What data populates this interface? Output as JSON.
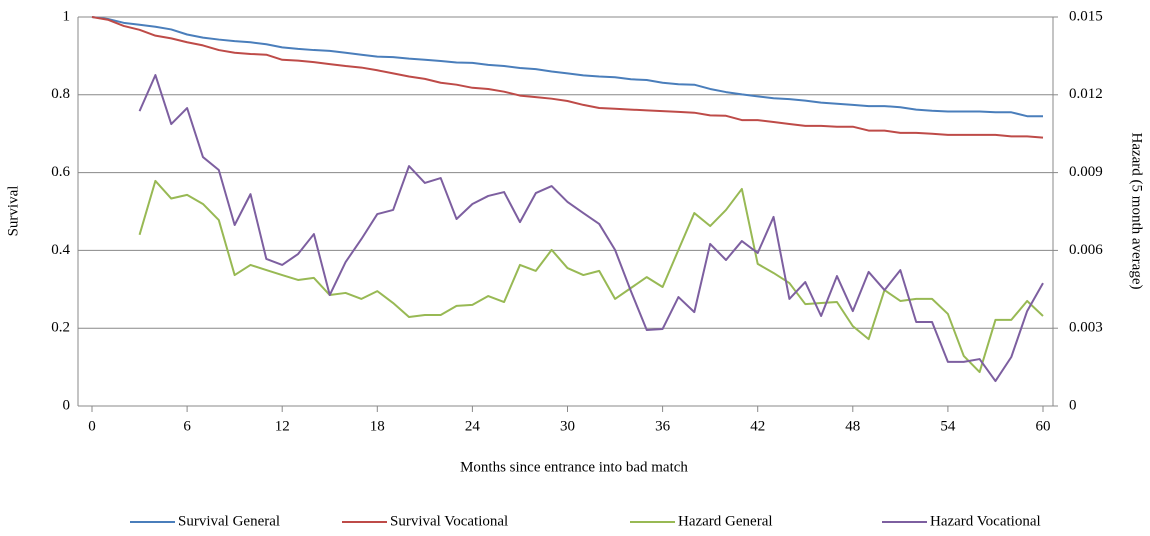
{
  "chart_data": {
    "type": "line",
    "xlabel": "Months since entrance into bad match",
    "ylabel": "Survival",
    "y2label": "Hazard (5 month average)",
    "x": [
      0,
      1,
      2,
      3,
      4,
      5,
      6,
      7,
      8,
      9,
      10,
      11,
      12,
      13,
      14,
      15,
      16,
      17,
      18,
      19,
      20,
      21,
      22,
      23,
      24,
      25,
      26,
      27,
      28,
      29,
      30,
      31,
      32,
      33,
      34,
      35,
      36,
      37,
      38,
      39,
      40,
      41,
      42,
      43,
      44,
      45,
      46,
      47,
      48,
      49,
      50,
      51,
      52,
      53,
      54,
      55,
      56,
      57,
      58,
      59,
      60
    ],
    "xlim": [
      0,
      60
    ],
    "xticks": [
      0,
      6,
      12,
      18,
      24,
      30,
      36,
      42,
      48,
      54,
      60
    ],
    "ylim": [
      0,
      1
    ],
    "yticks": [
      0,
      0.2,
      0.4,
      0.6,
      0.8,
      1
    ],
    "y2lim": [
      0,
      0.015
    ],
    "y2ticks": [
      0,
      0.003,
      0.006,
      0.009,
      0.012,
      0.015
    ],
    "grid": true,
    "legend": "bottom",
    "series": [
      {
        "name": "Survival General",
        "color": "#4a7ebb",
        "values": [
          1,
          0.995,
          0.985,
          0.98,
          0.975,
          0.968,
          0.955,
          0.947,
          0.942,
          0.938,
          0.935,
          0.93,
          0.922,
          0.918,
          0.915,
          0.913,
          0.908,
          0.903,
          0.898,
          0.897,
          0.893,
          0.89,
          0.887,
          0.883,
          0.882,
          0.877,
          0.874,
          0.869,
          0.866,
          0.86,
          0.855,
          0.85,
          0.847,
          0.845,
          0.84,
          0.838,
          0.831,
          0.827,
          0.826,
          0.815,
          0.807,
          0.801,
          0.796,
          0.791,
          0.789,
          0.785,
          0.78,
          0.777,
          0.774,
          0.771,
          0.771,
          0.768,
          0.762,
          0.759,
          0.757,
          0.757,
          0.757,
          0.755,
          0.755,
          0.745,
          0.745
        ]
      },
      {
        "name": "Survival Vocational",
        "color": "#be4b48",
        "values": [
          1,
          0.993,
          0.977,
          0.967,
          0.952,
          0.945,
          0.935,
          0.927,
          0.915,
          0.908,
          0.905,
          0.903,
          0.89,
          0.888,
          0.884,
          0.879,
          0.874,
          0.87,
          0.863,
          0.855,
          0.847,
          0.841,
          0.831,
          0.826,
          0.818,
          0.815,
          0.808,
          0.798,
          0.794,
          0.79,
          0.784,
          0.774,
          0.766,
          0.764,
          0.762,
          0.76,
          0.758,
          0.756,
          0.754,
          0.747,
          0.746,
          0.735,
          0.735,
          0.73,
          0.725,
          0.72,
          0.72,
          0.718,
          0.718,
          0.708,
          0.708,
          0.702,
          0.702,
          0.7,
          0.697,
          0.697,
          0.697,
          0.697,
          0.693,
          0.693,
          0.69
        ]
      },
      {
        "name": "Hazard General",
        "color": "#98b954",
        "axis": "y2",
        "values": [
          null,
          null,
          null,
          0.0066,
          0.00868,
          0.008,
          0.00814,
          0.00779,
          0.00717,
          0.00505,
          0.00544,
          0.00524,
          0.00505,
          0.00486,
          0.00494,
          0.00428,
          0.00436,
          0.00413,
          0.00443,
          0.00397,
          0.00343,
          0.00351,
          0.00351,
          0.00386,
          0.0039,
          0.00424,
          0.00401,
          0.00544,
          0.00521,
          0.00602,
          0.00532,
          0.00505,
          0.00521,
          0.00413,
          0.00455,
          0.00497,
          0.00459,
          0.00602,
          0.00744,
          0.00694,
          0.00756,
          0.00837,
          0.00548,
          0.00513,
          0.00474,
          0.00393,
          0.00397,
          0.00401,
          0.00308,
          0.00258,
          0.00447,
          0.00405,
          0.00413,
          0.00413,
          0.00355,
          0.00193,
          0.00131,
          0.00332,
          0.00332,
          0.00405,
          0.00347
        ]
      },
      {
        "name": "Hazard Vocational",
        "color": "#7d5fa0",
        "axis": "y2",
        "values": [
          null,
          null,
          null,
          0.01137,
          0.01276,
          0.01087,
          0.01149,
          0.0096,
          0.0091,
          0.00698,
          0.00817,
          0.00567,
          0.00544,
          0.00586,
          0.00663,
          0.00428,
          0.00555,
          0.00644,
          0.0074,
          0.00756,
          0.00925,
          0.0086,
          0.00879,
          0.00721,
          0.00779,
          0.0081,
          0.00825,
          0.00709,
          0.00821,
          0.00848,
          0.00787,
          0.00744,
          0.00702,
          0.00602,
          0.00443,
          0.00293,
          0.00297,
          0.0042,
          0.00362,
          0.00625,
          0.00563,
          0.00636,
          0.0059,
          0.00729,
          0.00413,
          0.00478,
          0.00347,
          0.00501,
          0.00366,
          0.00517,
          0.00447,
          0.00524,
          0.00324,
          0.00324,
          0.0017,
          0.0017,
          0.00181,
          0.00096,
          0.00189,
          0.00366,
          0.00474
        ]
      }
    ]
  }
}
